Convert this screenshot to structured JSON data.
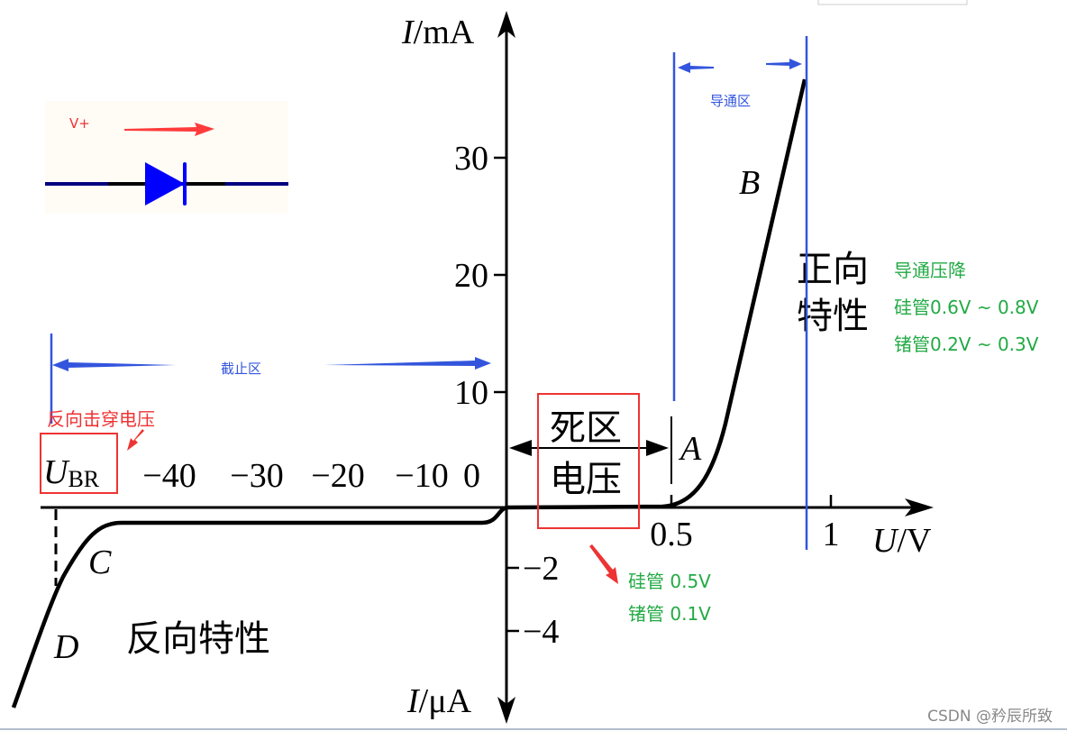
{
  "axes": {
    "y_label_top_italic": "I",
    "y_label_top_unit": "/mA",
    "y_label_bottom_italic": "I",
    "y_label_bottom_unit": "/μA",
    "x_label_italic": "U",
    "x_label_unit": "/V",
    "y_ticks_pos": [
      "30",
      "20",
      "10",
      "0"
    ],
    "y_ticks_neg": [
      "−2",
      "−4"
    ],
    "x_ticks_pos": [
      "0.5",
      "1"
    ],
    "x_ticks_neg": [
      "−10",
      "−20",
      "−30",
      "−40"
    ],
    "ubr_main": "U",
    "ubr_sub": "BR"
  },
  "curve_points": {
    "A": "A",
    "B": "B",
    "C": "C",
    "D": "D"
  },
  "regions": {
    "forward_line1": "正向",
    "forward_line2": "特性",
    "reverse": "反向特性",
    "dead_zone_line1": "死区",
    "dead_zone_line2": "电压",
    "conduction_zone": "导通区",
    "cutoff_zone": "截止区"
  },
  "annotations": {
    "breakdown_voltage": "反向击穿电压",
    "forward_drop_title": "导通压降",
    "forward_drop_si": "硅管0.6V ~ 0.8V",
    "forward_drop_ge": "锗管0.2V ~ 0.3V",
    "dead_si": "硅管 0.5V",
    "dead_ge": "锗管 0.1V"
  },
  "inset": {
    "label": "V+"
  },
  "watermark": "CSDN @矜辰所致",
  "colors": {
    "red": "#ee3333",
    "green": "#22aa44",
    "blue": "#3355dd",
    "diode": "#0000ff",
    "curve": "#000000"
  }
}
